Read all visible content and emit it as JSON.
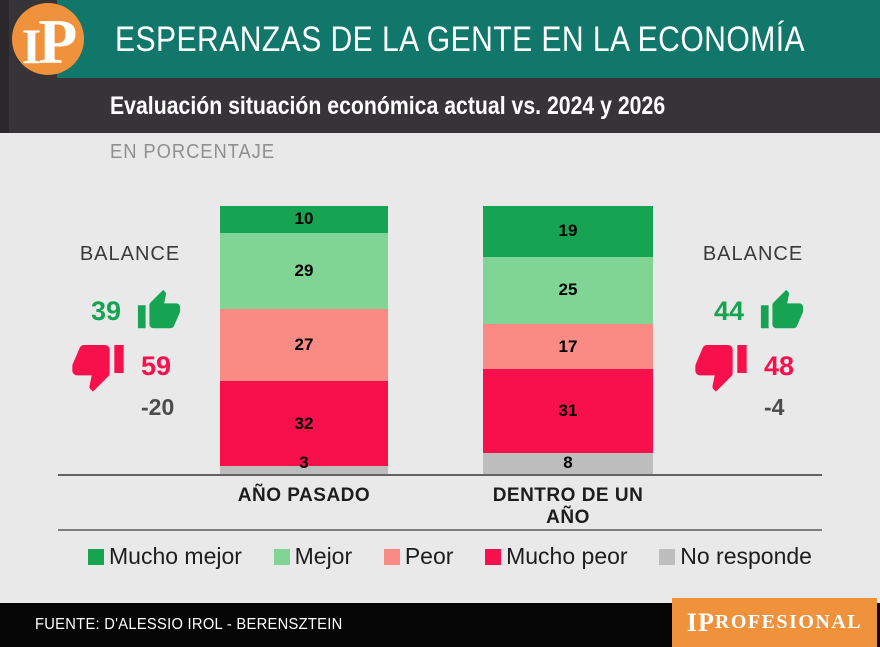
{
  "page": {
    "header": {
      "logo": {
        "i": "I",
        "p": "P"
      },
      "title": "ESPERANZAS DE LA GENTE EN LA ECONOMÍA"
    },
    "subtitle": "Evaluación situación económica actual vs. 2024 y 2026",
    "unit_label": "EN PORCENTAJE",
    "footer": {
      "source": "FUENTE: D'ALESSIO IROL - BERENSZTEIN",
      "brand_big": "IP",
      "brand_rest": "ROFESIONAL"
    }
  },
  "colors": {
    "teal_banner": "#10776a",
    "charcoal_bar": "#373437",
    "content_background": "#e9e9ea",
    "accent_orange": "#f0923c",
    "positive_green": "#17a452",
    "negative_red": "#f8104c",
    "footer_black": "#050505"
  },
  "chart_data": {
    "type": "bar",
    "stacked": true,
    "title": "Evaluación situación económica actual vs. 2024 y 2026",
    "unit": "EN PORCENTAJE",
    "categories": [
      "AÑO PASADO",
      "DENTRO DE UN AÑO"
    ],
    "series": [
      {
        "name": "Mucho mejor",
        "color": "#17a452",
        "values": [
          10,
          19
        ]
      },
      {
        "name": "Mejor",
        "color": "#80d494",
        "values": [
          29,
          25
        ]
      },
      {
        "name": "Peor",
        "color": "#fa8a84",
        "values": [
          27,
          17
        ]
      },
      {
        "name": "Mucho peor",
        "color": "#f8104c",
        "values": [
          32,
          31
        ]
      },
      {
        "name": "No responde",
        "color": "#bdbdbd",
        "values": [
          3,
          8
        ]
      }
    ],
    "stack_order": "top-to-bottom",
    "legend_position": "bottom",
    "grid": false,
    "balances": [
      {
        "side": "left",
        "label": "BALANCE",
        "positive": "39",
        "negative": "59",
        "net": "-20"
      },
      {
        "side": "right",
        "label": "BALANCE",
        "positive": "44",
        "negative": "48",
        "net": "-4"
      }
    ]
  }
}
